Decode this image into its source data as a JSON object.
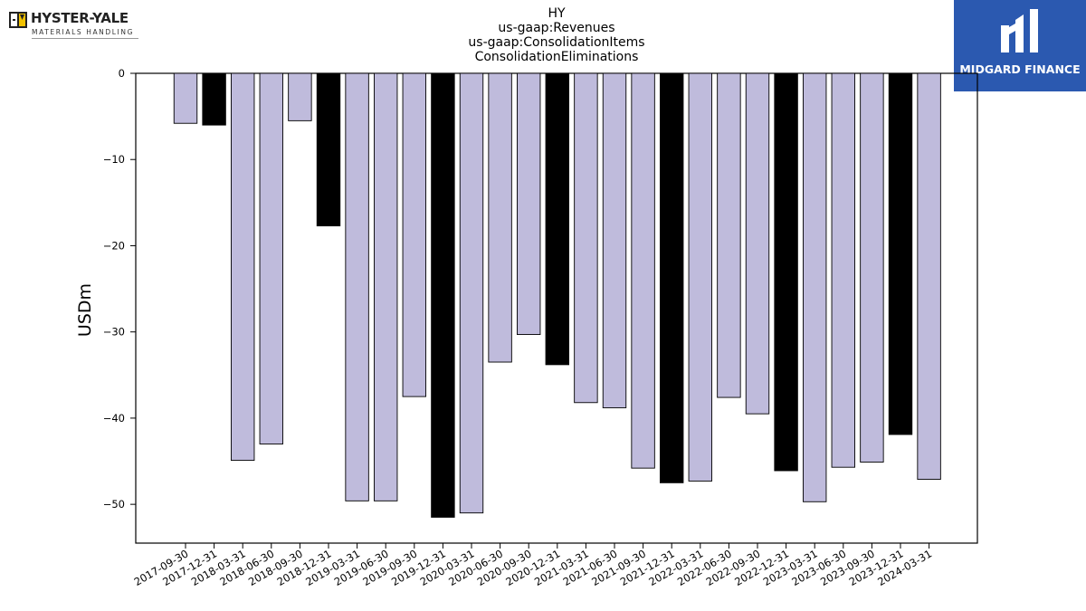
{
  "logos": {
    "left": {
      "brand": "HYSTER-YALE",
      "sub": "MATERIALS HANDLING"
    },
    "right": {
      "name": "MIDGARD FINANCE"
    }
  },
  "colors": {
    "quarter_bar": "#bfbbdc",
    "year_end_bar": "#000000",
    "logo_right_bg": "#2b59b0"
  },
  "chart_data": {
    "type": "bar",
    "title_lines": [
      "HY",
      "us-gaap:Revenues",
      "us-gaap:ConsolidationItems",
      "ConsolidationEliminations"
    ],
    "xlabel": "",
    "ylabel": "USDm",
    "ylim": [
      -54.5,
      0
    ],
    "yticks": [
      0,
      -10,
      -20,
      -30,
      -40,
      -50
    ],
    "grid": false,
    "categories": [
      "2017-09-30",
      "2017-12-31",
      "2018-03-31",
      "2018-06-30",
      "2018-09-30",
      "2018-12-31",
      "2019-03-31",
      "2019-06-30",
      "2019-09-30",
      "2019-12-31",
      "2020-03-31",
      "2020-06-30",
      "2020-09-30",
      "2020-12-31",
      "2021-03-31",
      "2021-06-30",
      "2021-09-30",
      "2021-12-31",
      "2022-03-31",
      "2022-06-30",
      "2022-09-30",
      "2022-12-31",
      "2023-03-31",
      "2023-06-30",
      "2023-09-30",
      "2023-12-31",
      "2024-03-31"
    ],
    "values": [
      -5.8,
      -6.0,
      -44.9,
      -43.0,
      -5.5,
      -17.7,
      -49.6,
      -49.6,
      -37.5,
      -51.5,
      -51.0,
      -33.5,
      -30.3,
      -33.8,
      -38.2,
      -38.8,
      -45.8,
      -47.5,
      -47.3,
      -37.6,
      -39.5,
      -46.1,
      -49.7,
      -45.7,
      -45.1,
      -41.9,
      -47.1
    ],
    "year_end": [
      false,
      true,
      false,
      false,
      false,
      true,
      false,
      false,
      false,
      true,
      false,
      false,
      false,
      true,
      false,
      false,
      false,
      true,
      false,
      false,
      false,
      true,
      false,
      false,
      false,
      true,
      false
    ]
  }
}
